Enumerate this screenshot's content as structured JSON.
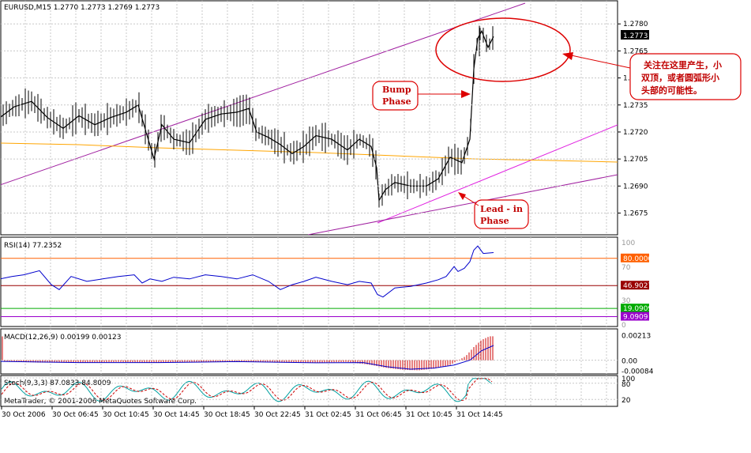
{
  "chart_data": {
    "type": "line",
    "symbol": "EURUSD",
    "timeframe": "M15",
    "header": "EURUSD,M15  1.2770 1.2773 1.2769 1.2773",
    "last_price": "1.2773",
    "price_axis": [
      "1.2780",
      "1.2765",
      "1.2750",
      "1.2735",
      "1.2720",
      "1.2705",
      "1.2690",
      "1.2675"
    ],
    "price_ylim": [
      1.2666,
      1.2788
    ],
    "time_labels": [
      "30 Oct 2006",
      "30 Oct 06:45",
      "30 Oct 10:45",
      "30 Oct 14:45",
      "30 Oct 18:45",
      "30 Oct 22:45",
      "31 Oct 02:45",
      "31 Oct 06:45",
      "31 Oct 10:45",
      "31 Oct 14:45"
    ],
    "price_path": [
      [
        0,
        1.2728
      ],
      [
        18,
        1.2734
      ],
      [
        40,
        1.2737
      ],
      [
        60,
        1.2728
      ],
      [
        80,
        1.2722
      ],
      [
        100,
        1.2729
      ],
      [
        120,
        1.2724
      ],
      [
        140,
        1.2728
      ],
      [
        160,
        1.2731
      ],
      [
        175,
        1.2735
      ],
      [
        185,
        1.272
      ],
      [
        195,
        1.2705
      ],
      [
        205,
        1.2724
      ],
      [
        220,
        1.2716
      ],
      [
        240,
        1.2714
      ],
      [
        260,
        1.2727
      ],
      [
        280,
        1.273
      ],
      [
        300,
        1.2731
      ],
      [
        315,
        1.2733
      ],
      [
        325,
        1.272
      ],
      [
        340,
        1.2717
      ],
      [
        355,
        1.2713
      ],
      [
        370,
        1.2708
      ],
      [
        385,
        1.2712
      ],
      [
        400,
        1.2718
      ],
      [
        420,
        1.2716
      ],
      [
        440,
        1.271
      ],
      [
        455,
        1.2716
      ],
      [
        470,
        1.2712
      ],
      [
        477,
        1.27
      ],
      [
        480,
        1.2682
      ],
      [
        488,
        1.2688
      ],
      [
        500,
        1.2692
      ],
      [
        520,
        1.269
      ],
      [
        540,
        1.269
      ],
      [
        555,
        1.2694
      ],
      [
        570,
        1.2706
      ],
      [
        585,
        1.2703
      ],
      [
        595,
        1.2716
      ],
      [
        600,
        1.2755
      ],
      [
        605,
        1.2772
      ],
      [
        610,
        1.2776
      ],
      [
        618,
        1.2767
      ],
      [
        625,
        1.2773
      ]
    ],
    "bump_peak": {
      "x": 607,
      "y": 1.2779
    },
    "rsi": {
      "label": "RSI(14) 77.2352",
      "scale": [
        "100",
        "70",
        "30",
        "0"
      ],
      "levels": [
        {
          "label": "80.0000",
          "value": 80,
          "color": "#ff6000"
        },
        {
          "label": "46.9027",
          "value": 46.9,
          "color": "#990000"
        },
        {
          "label": "19.0909",
          "value": 19.09,
          "color": "#00aa00"
        },
        {
          "label": "9.0909",
          "value": 9.09,
          "color": "#9900cc"
        }
      ],
      "path": [
        [
          0,
          55
        ],
        [
          15,
          58
        ],
        [
          30,
          60
        ],
        [
          50,
          65
        ],
        [
          65,
          48
        ],
        [
          75,
          42
        ],
        [
          90,
          58
        ],
        [
          110,
          52
        ],
        [
          130,
          55
        ],
        [
          150,
          58
        ],
        [
          170,
          60
        ],
        [
          180,
          50
        ],
        [
          190,
          55
        ],
        [
          205,
          52
        ],
        [
          220,
          57
        ],
        [
          240,
          55
        ],
        [
          260,
          60
        ],
        [
          280,
          58
        ],
        [
          300,
          55
        ],
        [
          320,
          60
        ],
        [
          340,
          52
        ],
        [
          355,
          42
        ],
        [
          370,
          48
        ],
        [
          385,
          52
        ],
        [
          400,
          57
        ],
        [
          420,
          52
        ],
        [
          440,
          48
        ],
        [
          455,
          52
        ],
        [
          470,
          50
        ],
        [
          478,
          36
        ],
        [
          485,
          33
        ],
        [
          500,
          44
        ],
        [
          520,
          46
        ],
        [
          540,
          50
        ],
        [
          555,
          54
        ],
        [
          565,
          58
        ],
        [
          575,
          70
        ],
        [
          580,
          64
        ],
        [
          588,
          68
        ],
        [
          595,
          76
        ],
        [
          600,
          90
        ],
        [
          605,
          95
        ],
        [
          612,
          86
        ],
        [
          625,
          87
        ]
      ]
    },
    "macd": {
      "label": "MACD(12,26,9) 0.00199 0.00123",
      "scale": [
        "0.00213",
        "0.00",
        "-0.00084"
      ],
      "ylim": [
        -0.00095,
        0.00235
      ],
      "hist": [
        [
          5,
          -0.0001
        ],
        [
          50,
          -0.0002
        ],
        [
          100,
          -0.0002
        ],
        [
          150,
          -0.00015
        ],
        [
          200,
          -0.0002
        ],
        [
          250,
          -0.00015
        ],
        [
          300,
          -0.0001
        ],
        [
          350,
          -0.0002
        ],
        [
          400,
          -0.0002
        ],
        [
          440,
          -0.00015
        ],
        [
          470,
          -0.0004
        ],
        [
          490,
          -0.00065
        ],
        [
          510,
          -0.0008
        ],
        [
          530,
          -0.00085
        ],
        [
          550,
          -0.0007
        ],
        [
          570,
          -0.0004
        ],
        [
          590,
          0.00035
        ],
        [
          600,
          0.0011
        ],
        [
          610,
          0.0017
        ],
        [
          620,
          0.002
        ],
        [
          625,
          0.00199
        ]
      ],
      "signal": [
        [
          0,
          -0.0001
        ],
        [
          100,
          -0.0002
        ],
        [
          200,
          -0.0002
        ],
        [
          300,
          -0.00012
        ],
        [
          400,
          -0.00022
        ],
        [
          460,
          -0.0002
        ],
        [
          490,
          -0.00055
        ],
        [
          520,
          -0.00075
        ],
        [
          550,
          -0.00065
        ],
        [
          575,
          -0.0004
        ],
        [
          595,
          0.0
        ],
        [
          610,
          0.0008
        ],
        [
          625,
          0.00123
        ]
      ]
    },
    "stoch": {
      "label": "Stoch(9,3,3) 87.0833 84.8009",
      "scale": [
        "100",
        "80",
        "20"
      ],
      "copyright": "MetaTrader, © 2001-2006 MetaQuotes Software Corp."
    },
    "annotations": {
      "chinese_note": [
        "关注在这里产生，小",
        "双顶，或者圆弧形小",
        "头部的可能性。"
      ],
      "bump_phase": [
        "Bump",
        "Phase"
      ],
      "lead_in_phase": [
        "Lead  - in",
        "Phase"
      ]
    },
    "colors": {
      "price": "#000000",
      "trendline": "#a020a0",
      "trendline2": "#e020e0",
      "ma": "#ffa500",
      "rsi": "#0000cc",
      "macd_hist": "#cc0000",
      "macd_signal": "#0000cc",
      "stoch_main": "#00a0a0",
      "stoch_signal": "#cc0000",
      "annotation": "#dd0000",
      "grid": "#c8c8c8"
    }
  }
}
